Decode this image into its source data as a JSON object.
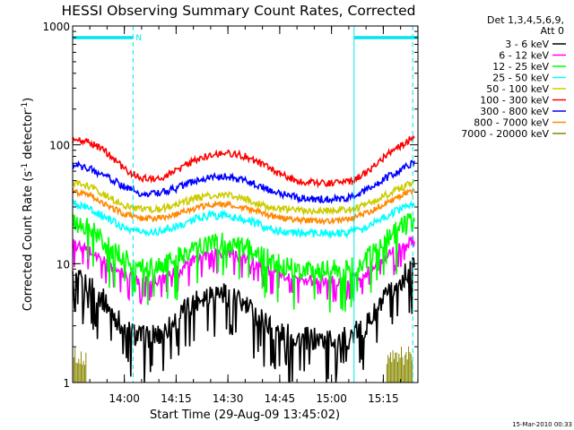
{
  "chart_data": {
    "type": "line",
    "title": "HESSI Observing Summary Count Rates, Corrected",
    "xlabel": "Start Time (29-Aug-09 13:45:02)",
    "ylabel_main": "Corrected Count Rate (s",
    "ylabel_sup1": "-1",
    "ylabel_mid": " detector",
    "ylabel_sup2": "-1",
    "ylabel_end": ")",
    "y_scale": "log",
    "ylim": [
      1,
      1000
    ],
    "xlim_minutes": [
      0,
      100
    ],
    "x_ticks": [
      {
        "label": "14:00",
        "minutes": 14.97
      },
      {
        "label": "14:15",
        "minutes": 29.97
      },
      {
        "label": "14:30",
        "minutes": 44.97
      },
      {
        "label": "14:45",
        "minutes": 59.97
      },
      {
        "label": "15:00",
        "minutes": 74.97
      },
      {
        "label": "15:15",
        "minutes": 89.97
      }
    ],
    "y_ticks": [
      {
        "label": "1",
        "value": 1
      },
      {
        "label": "10",
        "value": 10
      },
      {
        "label": "100",
        "value": 100
      },
      {
        "label": "1000",
        "value": 1000
      }
    ],
    "legend_header": [
      "Det 1,3,4,5,6,9,",
      "Att 0"
    ],
    "legend_placement": "right",
    "night_intervals": [
      [
        0,
        17.5
      ],
      [
        81.5,
        100
      ]
    ],
    "night_label": "N",
    "boundaries": [
      0,
      17.5,
      81.5,
      98.5
    ],
    "series": [
      {
        "name": "3 - 6 keV",
        "color": "#000000",
        "points": [
          [
            0,
            7.5
          ],
          [
            5,
            6.8
          ],
          [
            10,
            4.5
          ],
          [
            15,
            2.8
          ],
          [
            20,
            2.4
          ],
          [
            25,
            2.5
          ],
          [
            30,
            3.4
          ],
          [
            35,
            4.8
          ],
          [
            40,
            5.8
          ],
          [
            45,
            5.6
          ],
          [
            50,
            4.4
          ],
          [
            55,
            3.4
          ],
          [
            60,
            2.6
          ],
          [
            65,
            2.4
          ],
          [
            70,
            2.3
          ],
          [
            75,
            2.3
          ],
          [
            80,
            2.4
          ],
          [
            85,
            3.0
          ],
          [
            90,
            4.8
          ],
          [
            95,
            7.2
          ],
          [
            99,
            10.0
          ]
        ]
      },
      {
        "name": "6 - 12 keV",
        "color": "#ff00ff",
        "points": [
          [
            0,
            14.5
          ],
          [
            5,
            12.8
          ],
          [
            10,
            10.0
          ],
          [
            15,
            8.0
          ],
          [
            20,
            7.2
          ],
          [
            25,
            7.3
          ],
          [
            30,
            8.5
          ],
          [
            35,
            10.5
          ],
          [
            40,
            12.2
          ],
          [
            45,
            12.4
          ],
          [
            50,
            11.0
          ],
          [
            55,
            9.2
          ],
          [
            60,
            8.0
          ],
          [
            65,
            7.3
          ],
          [
            70,
            7.1
          ],
          [
            75,
            7.1
          ],
          [
            80,
            7.3
          ],
          [
            85,
            8.5
          ],
          [
            90,
            11.0
          ],
          [
            95,
            13.5
          ],
          [
            99,
            15.5
          ]
        ]
      },
      {
        "name": "12 - 25 keV",
        "color": "#00ff00",
        "points": [
          [
            0,
            22
          ],
          [
            5,
            19.5
          ],
          [
            10,
            14.5
          ],
          [
            15,
            11.0
          ],
          [
            20,
            9.2
          ],
          [
            25,
            9.4
          ],
          [
            30,
            11.0
          ],
          [
            35,
            13.5
          ],
          [
            40,
            15.0
          ],
          [
            45,
            15.0
          ],
          [
            50,
            13.5
          ],
          [
            55,
            11.5
          ],
          [
            60,
            9.8
          ],
          [
            65,
            9.0
          ],
          [
            70,
            8.8
          ],
          [
            75,
            8.8
          ],
          [
            80,
            9.0
          ],
          [
            85,
            11.0
          ],
          [
            90,
            15.0
          ],
          [
            95,
            20.0
          ],
          [
            99,
            24
          ]
        ]
      },
      {
        "name": "25 - 50 keV",
        "color": "#00ffff",
        "points": [
          [
            0,
            32
          ],
          [
            5,
            29
          ],
          [
            10,
            24
          ],
          [
            15,
            20
          ],
          [
            20,
            18.5
          ],
          [
            25,
            18.8
          ],
          [
            30,
            20.5
          ],
          [
            35,
            23.5
          ],
          [
            40,
            25.5
          ],
          [
            45,
            25.5
          ],
          [
            50,
            23.5
          ],
          [
            55,
            20.5
          ],
          [
            60,
            18.8
          ],
          [
            65,
            18.2
          ],
          [
            70,
            18.0
          ],
          [
            75,
            18.0
          ],
          [
            80,
            18.2
          ],
          [
            85,
            20.0
          ],
          [
            90,
            24.5
          ],
          [
            95,
            29
          ],
          [
            99,
            33
          ]
        ]
      },
      {
        "name": "50 - 100 keV",
        "color": "#cccc00",
        "points": [
          [
            0,
            48
          ],
          [
            5,
            44
          ],
          [
            10,
            37
          ],
          [
            15,
            31
          ],
          [
            20,
            28.5
          ],
          [
            25,
            28.8
          ],
          [
            30,
            31.5
          ],
          [
            35,
            35
          ],
          [
            40,
            37.5
          ],
          [
            45,
            37.5
          ],
          [
            50,
            35
          ],
          [
            55,
            31
          ],
          [
            60,
            28.8
          ],
          [
            65,
            28
          ],
          [
            70,
            27.8
          ],
          [
            75,
            27.8
          ],
          [
            80,
            28.2
          ],
          [
            85,
            31
          ],
          [
            90,
            37
          ],
          [
            95,
            43
          ],
          [
            99,
            49
          ]
        ]
      },
      {
        "name": "100 - 300 keV",
        "color": "#ff0000",
        "points": [
          [
            0,
            110
          ],
          [
            5,
            104
          ],
          [
            10,
            86
          ],
          [
            15,
            62
          ],
          [
            20,
            52
          ],
          [
            25,
            52
          ],
          [
            30,
            60
          ],
          [
            35,
            73
          ],
          [
            40,
            83
          ],
          [
            45,
            86
          ],
          [
            50,
            80
          ],
          [
            55,
            68
          ],
          [
            60,
            57
          ],
          [
            65,
            50
          ],
          [
            70,
            48
          ],
          [
            75,
            48
          ],
          [
            80,
            49
          ],
          [
            85,
            58
          ],
          [
            90,
            78
          ],
          [
            95,
            98
          ],
          [
            99,
            118
          ]
        ]
      },
      {
        "name": "300 - 800 keV",
        "color": "#0000ff",
        "points": [
          [
            0,
            68
          ],
          [
            5,
            63
          ],
          [
            10,
            54
          ],
          [
            15,
            44
          ],
          [
            20,
            39
          ],
          [
            25,
            39
          ],
          [
            30,
            43
          ],
          [
            35,
            49
          ],
          [
            40,
            53
          ],
          [
            45,
            54
          ],
          [
            50,
            50
          ],
          [
            55,
            44
          ],
          [
            60,
            39
          ],
          [
            65,
            36
          ],
          [
            70,
            35
          ],
          [
            75,
            35
          ],
          [
            80,
            36
          ],
          [
            85,
            41
          ],
          [
            90,
            51
          ],
          [
            95,
            62
          ],
          [
            99,
            72
          ]
        ]
      },
      {
        "name": "800 - 7000 keV",
        "color": "#ff8800",
        "points": [
          [
            0,
            41
          ],
          [
            5,
            37.5
          ],
          [
            10,
            31
          ],
          [
            15,
            26
          ],
          [
            20,
            24
          ],
          [
            25,
            24.2
          ],
          [
            30,
            26
          ],
          [
            35,
            29
          ],
          [
            40,
            31.5
          ],
          [
            45,
            31.8
          ],
          [
            50,
            29.5
          ],
          [
            55,
            26.5
          ],
          [
            60,
            24.3
          ],
          [
            65,
            23.3
          ],
          [
            70,
            23
          ],
          [
            75,
            23
          ],
          [
            80,
            23.5
          ],
          [
            85,
            26.5
          ],
          [
            90,
            31.5
          ],
          [
            95,
            37.5
          ],
          [
            99,
            42
          ]
        ]
      },
      {
        "name": "7000 - 20000 keV",
        "color": "#888800",
        "points": [
          [
            0,
            1.6
          ],
          [
            99,
            1.6
          ]
        ]
      }
    ]
  },
  "footer_timestamp": "15-Mar-2010 00:33"
}
